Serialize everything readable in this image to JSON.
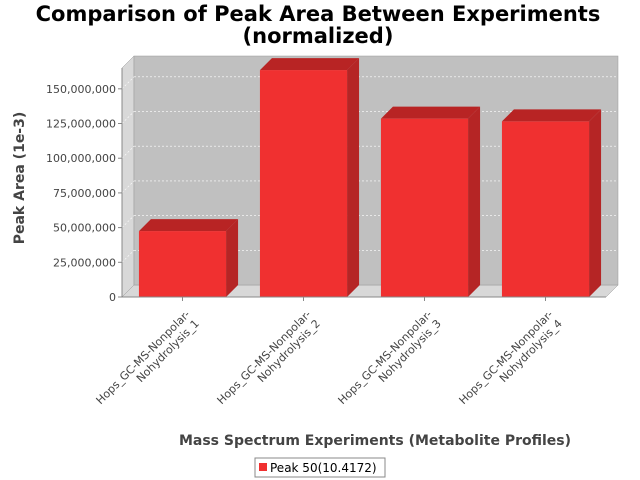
{
  "chart_data": {
    "type": "bar",
    "title_lines": [
      "Comparison of Peak Area Between Experiments",
      "(normalized)"
    ],
    "xlabel": "Mass Spectrum Experiments (Metabolite Profiles)",
    "ylabel": "Peak Area (1e-3)",
    "categories": [
      [
        "Hops_GC-MS-Nonpolar-",
        "Nohydrolysis_1"
      ],
      [
        "Hops_GC-MS-Nonpolar-",
        "Nohydrolysis_2"
      ],
      [
        "Hops_GC-MS-Nonpolar-",
        "Nohydrolysis_3"
      ],
      [
        "Hops_GC-MS-Nonpolar-",
        "Nohydrolysis_4"
      ]
    ],
    "series": [
      {
        "name": "Peak 50(10.4172)",
        "values": [
          47500000,
          163500000,
          128500000,
          126500000
        ]
      }
    ],
    "ylim": [
      0,
      165000000
    ],
    "yticks": [
      0,
      25000000,
      50000000,
      75000000,
      100000000,
      125000000,
      150000000
    ],
    "ytick_labels": [
      "0",
      "25,000,000",
      "50,000,000",
      "75,000,000",
      "100,000,000",
      "125,000,000",
      "150,000,000"
    ],
    "grid": true,
    "legend_position": "bottom",
    "colors": {
      "bar_front": "#f03030",
      "bar_top": "#b82424",
      "bar_side": "#b52525",
      "plot_bg": "#c0c0c0",
      "wall": "#d8d8d8",
      "gridline": "#ffffff"
    }
  }
}
